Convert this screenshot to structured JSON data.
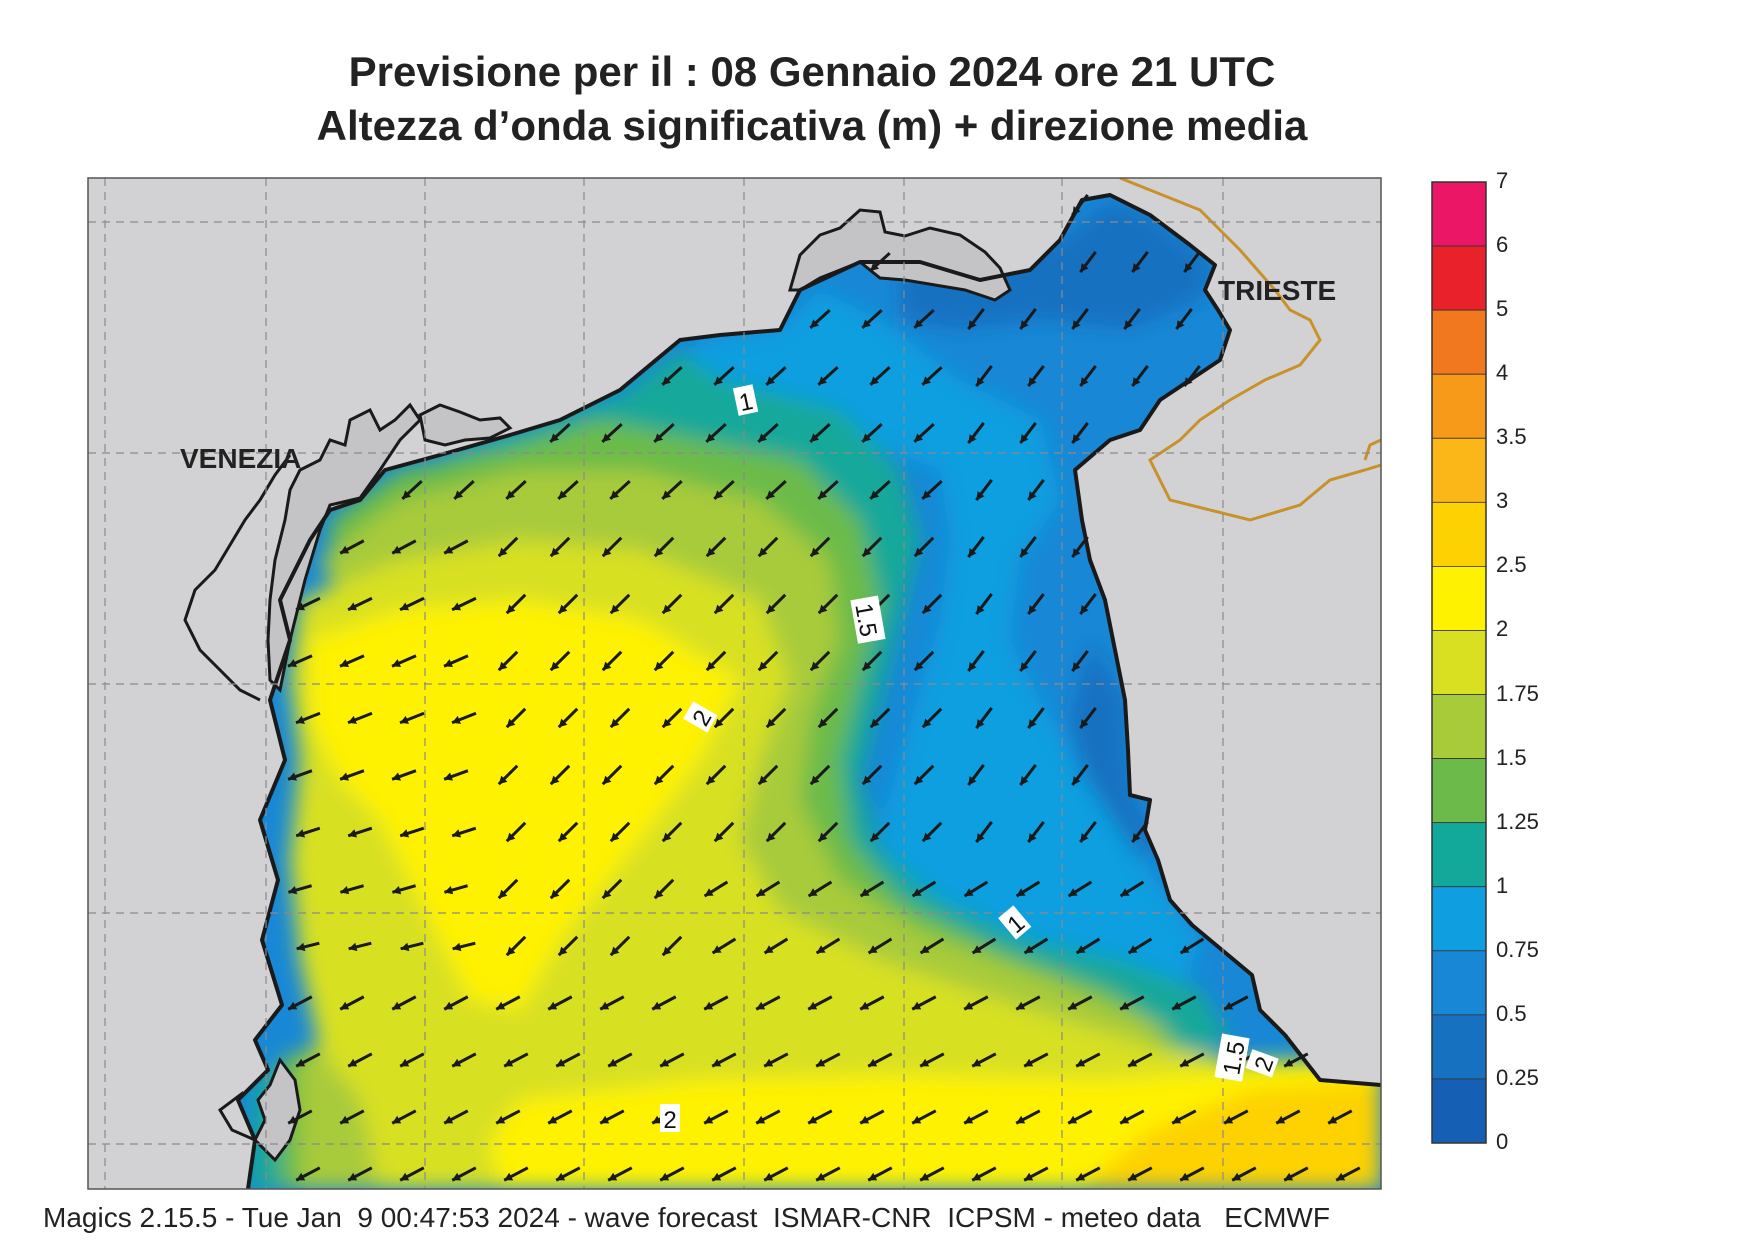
{
  "header": {
    "title_line1": "Previsione per il  :  08  Gennaio  2024   ore 21 UTC",
    "title_line2": "Altezza d’onda significativa (m) + direzione media"
  },
  "map": {
    "place_labels": [
      "VENEZIA",
      "TRIESTE"
    ],
    "contour_labels": [
      "1",
      "1.5",
      "2",
      "1",
      "1.5",
      "2",
      "2"
    ],
    "colors": {
      "land": "#d2d2d4",
      "border": "#c8922a",
      "coast": "#1a1a1a",
      "arrow": "#1a1a1a"
    },
    "wave_direction": "south-west"
  },
  "legend": {
    "labels": [
      "7",
      "6",
      "5",
      "4",
      "3.5",
      "3",
      "2.5",
      "2",
      "1.75",
      "1.5",
      "1.25",
      "1",
      "0.75",
      "0.5",
      "0.25",
      "0"
    ],
    "colors": [
      "#ec1666",
      "#e8212a",
      "#f2781f",
      "#f79a1a",
      "#fbb617",
      "#fdd203",
      "#fff200",
      "#d8e021",
      "#a8cb3a",
      "#6cbb4a",
      "#12a89a",
      "#0f9fe0",
      "#1888d6",
      "#1671c1",
      "#1560b4"
    ]
  },
  "footer": {
    "text": "Magics 2.15.5 - Tue Jan  9 00:47:53 2024 - wave forecast  ISMAR-CNR  ICPSM - meteo data   ECMWF"
  }
}
